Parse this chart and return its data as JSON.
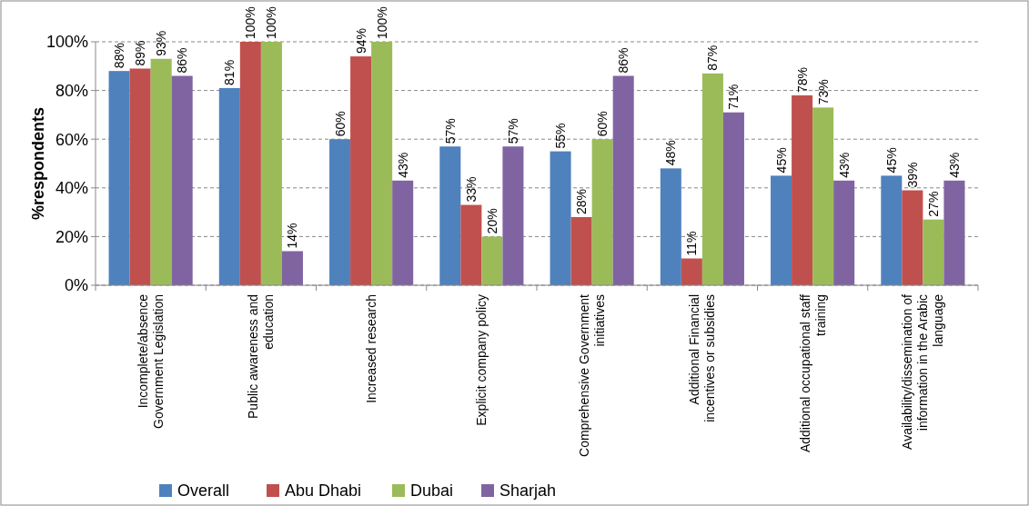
{
  "chart_data": {
    "type": "bar",
    "ylabel": "%respondents",
    "categories": [
      "Incomplete/absence\nGovernment Legislation",
      "Public awareness and\neducation",
      "Increased research",
      "Explicit company policy",
      "Comprehensive Government\ninitiatives",
      "Additional Financial\nincentives or subsidies",
      "Additional occupational staff\ntraining",
      "Availability/dissemination of\ninformation in the Arabic\nlanguage"
    ],
    "series": [
      {
        "name": "Overall",
        "color": "#4f81bd",
        "values": [
          88,
          81,
          60,
          57,
          55,
          48,
          45,
          45
        ],
        "value_labels": [
          "88%",
          "81%",
          "60%",
          "57%",
          "55%",
          "48%",
          "45%",
          "45%"
        ]
      },
      {
        "name": "Abu Dhabi",
        "color": "#c0504d",
        "values": [
          89,
          100,
          94,
          33,
          28,
          11,
          78,
          39
        ],
        "value_labels": [
          "89%",
          "100%",
          "94%",
          "33%",
          "28%",
          "11%",
          "78%",
          "39%"
        ]
      },
      {
        "name": "Dubai",
        "color": "#9bbb59",
        "values": [
          93,
          100,
          100,
          20,
          60,
          87,
          73,
          27
        ],
        "value_labels": [
          "93%",
          "100%",
          "100%",
          "20%",
          "60%",
          "87%",
          "73%",
          "27%"
        ]
      },
      {
        "name": "Sharjah",
        "color": "#8064a2",
        "values": [
          86,
          14,
          43,
          57,
          86,
          71,
          43,
          43
        ],
        "value_labels": [
          "86%",
          "14%",
          "43%",
          "57%",
          "86%",
          "71%",
          "43%",
          "43%"
        ]
      }
    ],
    "ylim": [
      0,
      100
    ],
    "yticks": [
      {
        "value": 0,
        "label": "0%"
      },
      {
        "value": 20,
        "label": "20%"
      },
      {
        "value": 40,
        "label": "40%"
      },
      {
        "value": 60,
        "label": "60%"
      },
      {
        "value": 80,
        "label": "80%"
      },
      {
        "value": 100,
        "label": "100%"
      }
    ],
    "grid": "y",
    "legend": "bottom"
  }
}
